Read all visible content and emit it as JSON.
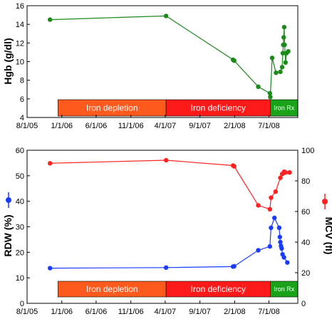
{
  "chart_data": [
    {
      "type": "line",
      "ylabel": "Hgb (g/dl)",
      "xlim": [
        "2005-08-01",
        "2008-11-05"
      ],
      "ylim": [
        4,
        16
      ],
      "x_ticks": [
        "8/1/05",
        "1/1/06",
        "6/1/06",
        "11/1/06",
        "4/1/07",
        "9/1/07",
        "2/1/08",
        "7/1/08"
      ],
      "y_ticks": [
        4,
        6,
        8,
        10,
        12,
        14,
        16
      ],
      "series": [
        {
          "color": "#1a8a1a",
          "points": [
            [
              "2005-11-10",
              14.5
            ],
            [
              "2007-04-05",
              14.9
            ],
            [
              "2008-01-25",
              10.2
            ],
            [
              "2008-01-30",
              10.1
            ],
            [
              "2008-05-15",
              7.3
            ],
            [
              "2008-07-05",
              6.6
            ],
            [
              "2008-07-07",
              6.2
            ],
            [
              "2008-07-15",
              10.4
            ],
            [
              "2008-08-01",
              8.8
            ],
            [
              "2008-08-20",
              8.9
            ],
            [
              "2008-08-28",
              9.4
            ],
            [
              "2008-08-31",
              10.9
            ],
            [
              "2008-09-02",
              11.8
            ],
            [
              "2008-09-04",
              12.6
            ],
            [
              "2008-09-06",
              13.7
            ],
            [
              "2008-09-08",
              11.8
            ],
            [
              "2008-09-12",
              9.9
            ],
            [
              "2008-09-16",
              10.9
            ],
            [
              "2008-09-24",
              11.1
            ]
          ]
        }
      ],
      "phases": [
        {
          "label": "Iron depletion",
          "start": "2005-12-15",
          "end": "2007-04-05",
          "color": "#ff5a1e"
        },
        {
          "label": "Iron deficiency",
          "start": "2007-04-05",
          "end": "2008-07-07",
          "color": "#ff1a1a"
        },
        {
          "label": "Iron Rx",
          "start": "2008-07-07",
          "end": "2008-11-05",
          "color": "#1aa31a"
        }
      ]
    },
    {
      "type": "line",
      "ylabel": "RDW (%)",
      "y2label": "MCV (fl)",
      "xlim": [
        "2005-08-01",
        "2008-11-05"
      ],
      "ylim": [
        0,
        60
      ],
      "y2lim": [
        0,
        100
      ],
      "x_ticks": [
        "8/1/05",
        "1/1/06",
        "6/1/06",
        "11/1/06",
        "4/1/07",
        "9/1/07",
        "2/1/08",
        "7/1/08"
      ],
      "y_ticks": [
        0,
        10,
        20,
        30,
        40,
        50,
        60
      ],
      "y2_ticks": [
        0,
        20,
        40,
        60,
        80,
        100
      ],
      "series": [
        {
          "axis": "left",
          "color": "#1a3cff",
          "points": [
            [
              "2005-11-10",
              13.8
            ],
            [
              "2007-04-05",
              14.0
            ],
            [
              "2008-01-25",
              14.4
            ],
            [
              "2008-01-30",
              14.5
            ],
            [
              "2008-05-15",
              20.8
            ],
            [
              "2008-07-05",
              22.3
            ],
            [
              "2008-07-10",
              29.6
            ],
            [
              "2008-07-25",
              33.5
            ],
            [
              "2008-08-15",
              29.6
            ],
            [
              "2008-08-18",
              26.0
            ],
            [
              "2008-08-20",
              24.0
            ],
            [
              "2008-08-23",
              22.5
            ],
            [
              "2008-08-26",
              21.5
            ],
            [
              "2008-08-30",
              19.2
            ],
            [
              "2008-09-05",
              18.0
            ],
            [
              "2008-09-20",
              16.0
            ]
          ]
        },
        {
          "axis": "right",
          "color": "#ff2222",
          "points": [
            [
              "2005-11-10",
              91.5
            ],
            [
              "2007-04-05",
              93.5
            ],
            [
              "2008-01-25",
              90.0
            ],
            [
              "2008-01-30",
              89.5
            ],
            [
              "2008-05-15",
              64.0
            ],
            [
              "2008-07-05",
              61.5
            ],
            [
              "2008-07-10",
              69.0
            ],
            [
              "2008-07-30",
              73.0
            ],
            [
              "2008-08-20",
              82.0
            ],
            [
              "2008-08-28",
              84.5
            ],
            [
              "2008-09-02",
              85.0
            ],
            [
              "2008-09-06",
              86.0
            ],
            [
              "2008-09-12",
              85.5
            ],
            [
              "2008-09-30",
              85.5
            ]
          ]
        }
      ],
      "phases": [
        {
          "label": "Iron depletion",
          "start": "2005-12-15",
          "end": "2007-04-05",
          "color": "#ff5a1e"
        },
        {
          "label": "Iron deficiency",
          "start": "2007-04-05",
          "end": "2008-07-07",
          "color": "#ff1a1a"
        },
        {
          "label": "Iron Rx",
          "start": "2008-07-07",
          "end": "2008-11-05",
          "color": "#1aa31a"
        }
      ]
    }
  ]
}
